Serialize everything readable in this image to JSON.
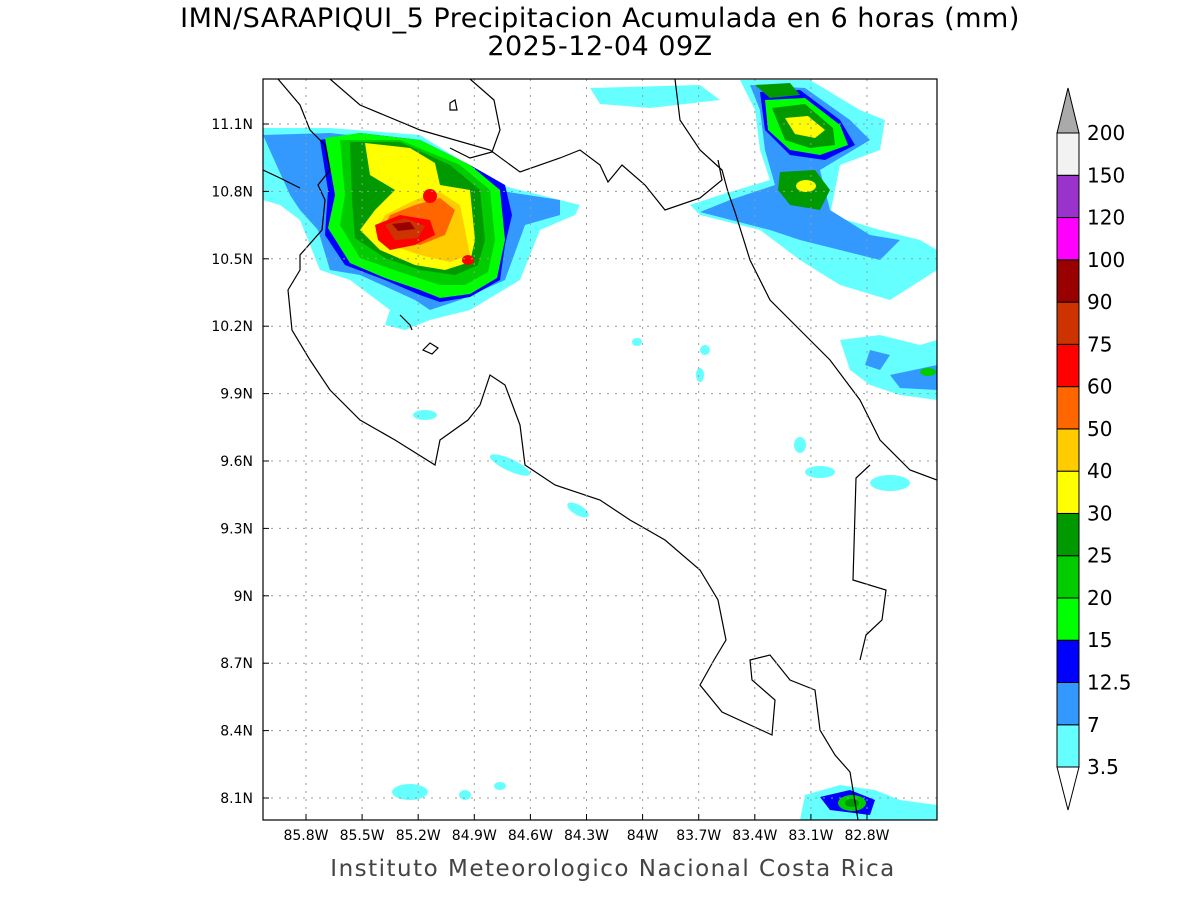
{
  "title": "IMN/SARAPIQUI_5 Precipitacion Acumulada en 6 horas (mm)",
  "subtitle": "2025-12-04 09Z",
  "footer": "Instituto Meteorologico Nacional Costa Rica",
  "map": {
    "lon_ticks": [
      "85.8W",
      "85.5W",
      "85.2W",
      "84.9W",
      "84.6W",
      "84.3W",
      "84W",
      "83.7W",
      "83.4W",
      "83.1W",
      "82.8W"
    ],
    "lat_ticks": [
      "11.1N",
      "10.8N",
      "10.5N",
      "10.2N",
      "9.9N",
      "9.6N",
      "9.3N",
      "9N",
      "8.7N",
      "8.4N",
      "8.1N"
    ],
    "grid": true
  },
  "colorbar": {
    "levels": [
      "3.5",
      "7",
      "12.5",
      "15",
      "20",
      "25",
      "30",
      "40",
      "50",
      "60",
      "75",
      "90",
      "100",
      "120",
      "150",
      "200"
    ],
    "colors": [
      "#66ffff",
      "#3399ff",
      "#0000ff",
      "#00ff00",
      "#00cc00",
      "#009900",
      "#ffff00",
      "#ffcc00",
      "#ff6600",
      "#ff0000",
      "#cc3300",
      "#990000",
      "#ff00ff",
      "#9933cc",
      "#f2f2f2"
    ],
    "over_color": "#aaaaaa",
    "under_color": "#ffffff"
  }
}
